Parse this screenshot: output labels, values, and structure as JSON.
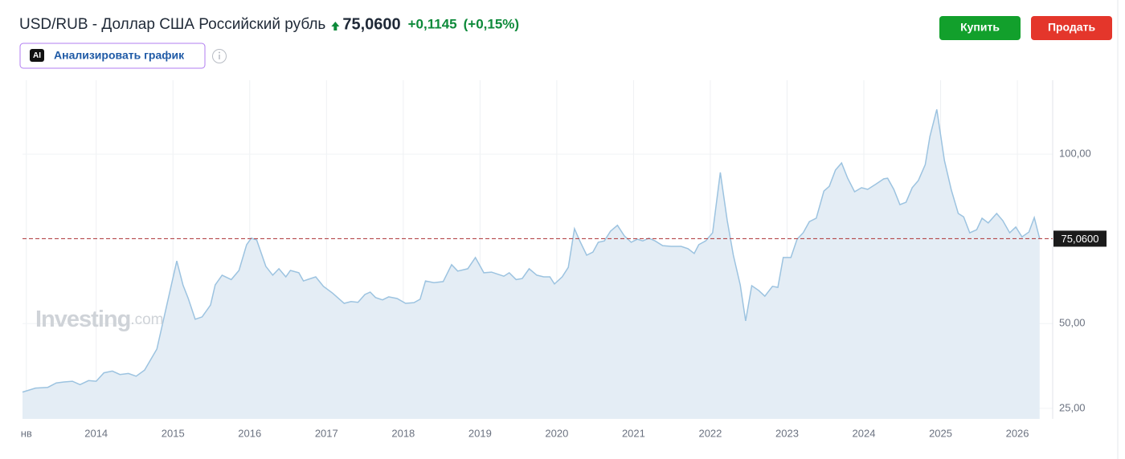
{
  "chart_data": {
    "type": "area",
    "title": "USD/RUB - Доллар США Российский рубль",
    "price": "75,0600",
    "change": "+0,1145",
    "change_pct": "(+0,15%)",
    "buttons": {
      "buy": "Купить",
      "sell": "Продать",
      "analyze": "Анализировать график",
      "ai": "AI"
    },
    "watermark": {
      "brand": "Investing",
      "suffix": ".com"
    },
    "color": "#9cc3e0",
    "fill": "#e4edf5",
    "grid": true,
    "x": [
      2013.04,
      2013.21,
      2013.37,
      2013.48,
      2013.58,
      2013.69,
      2013.79,
      2013.9,
      2014.0,
      2014.1,
      2014.21,
      2014.31,
      2014.42,
      2014.52,
      2014.63,
      2014.79,
      2014.92,
      2015.05,
      2015.13,
      2015.2,
      2015.29,
      2015.38,
      2015.49,
      2015.55,
      2015.64,
      2015.76,
      2015.86,
      2015.96,
      2016.02,
      2016.09,
      2016.21,
      2016.3,
      2016.38,
      2016.47,
      2016.53,
      2016.64,
      2016.7,
      2016.86,
      2016.96,
      2017.08,
      2017.23,
      2017.32,
      2017.41,
      2017.5,
      2017.57,
      2017.64,
      2017.73,
      2017.81,
      2017.92,
      2018.03,
      2018.14,
      2018.22,
      2018.29,
      2018.4,
      2018.52,
      2018.63,
      2018.71,
      2018.84,
      2018.94,
      2019.05,
      2019.15,
      2019.31,
      2019.38,
      2019.47,
      2019.55,
      2019.64,
      2019.74,
      2019.83,
      2019.91,
      2019.97,
      2020.07,
      2020.15,
      2020.23,
      2020.3,
      2020.39,
      2020.47,
      2020.54,
      2020.62,
      2020.7,
      2020.79,
      2020.88,
      2020.97,
      2021.05,
      2021.12,
      2021.2,
      2021.28,
      2021.38,
      2021.49,
      2021.62,
      2021.71,
      2021.79,
      2021.85,
      2021.94,
      2022.03,
      2022.13,
      2022.22,
      2022.3,
      2022.39,
      2022.46,
      2022.54,
      2022.63,
      2022.71,
      2022.81,
      2022.88,
      2022.95,
      2023.05,
      2023.13,
      2023.21,
      2023.29,
      2023.38,
      2023.48,
      2023.55,
      2023.63,
      2023.71,
      2023.79,
      2023.88,
      2023.97,
      2024.05,
      2024.16,
      2024.26,
      2024.31,
      2024.39,
      2024.47,
      2024.55,
      2024.63,
      2024.71,
      2024.8,
      2024.86,
      2024.95,
      2025.05,
      2025.14,
      2025.23,
      2025.3,
      2025.38,
      2025.47,
      2025.54,
      2025.62,
      2025.73,
      2025.81,
      2025.9,
      2025.98,
      2026.06,
      2026.15,
      2026.22,
      2026.29
    ],
    "values": [
      29.8,
      31,
      31.2,
      32.5,
      32.8,
      33,
      32,
      33.2,
      33,
      35.5,
      36,
      35,
      35.3,
      34.5,
      36.3,
      42.5,
      55.5,
      68.5,
      61.4,
      57.4,
      51.3,
      52,
      55.5,
      61.4,
      64.3,
      63,
      65.7,
      73.3,
      75.2,
      74.7,
      66.9,
      64.3,
      66.2,
      63.8,
      65.7,
      65,
      62.6,
      63.8,
      61,
      59,
      56,
      56.5,
      56.3,
      58.6,
      59.3,
      57.7,
      57,
      57.9,
      57.4,
      56,
      56.2,
      57.2,
      62.6,
      62.1,
      62.4,
      67.4,
      65.5,
      66.2,
      69.5,
      65,
      65.2,
      64,
      65,
      63,
      63.3,
      66.2,
      64.3,
      63.8,
      63.8,
      61.7,
      63.8,
      66.6,
      78,
      74.4,
      70.2,
      71.1,
      74,
      74.4,
      77.3,
      79,
      75.9,
      74,
      74.9,
      74.4,
      75.2,
      74.4,
      73,
      72.8,
      72.8,
      72.1,
      70.7,
      73.3,
      74.4,
      76.8,
      94.6,
      80.4,
      70.2,
      61.4,
      50.8,
      61.2,
      59.8,
      58.1,
      61,
      60.7,
      69.5,
      69.5,
      74.9,
      76.8,
      80.1,
      81.1,
      89.1,
      90.5,
      95.3,
      97.4,
      92.9,
      88.9,
      90.1,
      89.6,
      91.2,
      92.7,
      92.9,
      89.6,
      85.1,
      85.8,
      90.1,
      92.2,
      96.9,
      105.2,
      113.2,
      98.1,
      89.4,
      82.5,
      81.5,
      76.8,
      77.7,
      81.1,
      79.7,
      82.5,
      80.4,
      76.8,
      78.5,
      75.6,
      77,
      81.3,
      75.06
    ],
    "xlim": [
      2013.04,
      2026.46
    ],
    "ylim": [
      21.9,
      121.8
    ],
    "xticks": [
      {
        "value": 2013.09,
        "label": "нв"
      },
      2014,
      2015,
      2016,
      2017,
      2018,
      2019,
      2020,
      2021,
      2022,
      2023,
      2024,
      2025,
      2026
    ],
    "yticks": [
      {
        "value": 25,
        "label": "25,00"
      },
      {
        "value": 50,
        "label": "50,00"
      },
      {
        "value": 100,
        "label": "100,00"
      }
    ],
    "price_line": {
      "value": 75.06,
      "label": "75,0600",
      "color": "#b5484a"
    }
  }
}
